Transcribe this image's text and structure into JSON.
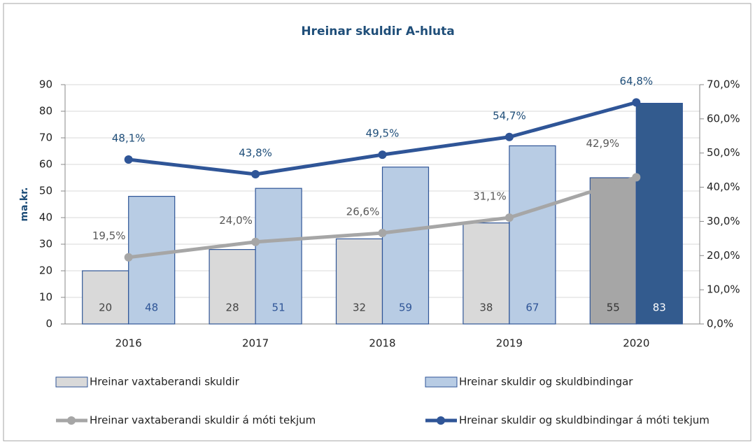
{
  "chart_data": {
    "type": "bar",
    "title": "Hreinar skuldir A-hluta",
    "ylabel": "ma.kr.",
    "categories": [
      "2016",
      "2017",
      "2018",
      "2019",
      "2020"
    ],
    "series": [
      {
        "name": "Hreinar vaxtaberandi skuldir",
        "type": "bar",
        "color": "#d9d9d9",
        "colors": [
          "#d9d9d9",
          "#d9d9d9",
          "#d9d9d9",
          "#d9d9d9",
          "#a6a6a6"
        ],
        "values": [
          20,
          28,
          32,
          38,
          55
        ]
      },
      {
        "name": "Hreinar skuldir og skuldbindingar",
        "type": "bar",
        "color": "#b8cce4",
        "colors": [
          "#b8cce4",
          "#b8cce4",
          "#b8cce4",
          "#b8cce4",
          "#335b8e"
        ],
        "values": [
          48,
          51,
          59,
          67,
          83
        ]
      },
      {
        "name": "Hreinar vaxtaberandi skuldir á móti tekjum",
        "type": "line",
        "axis": "y2",
        "color": "#a6a6a6",
        "values": [
          19.5,
          24.0,
          26.6,
          31.1,
          42.9
        ],
        "value_labels": [
          "19,5%",
          "24,0%",
          "26,6%",
          "31,1%",
          "42,9%"
        ]
      },
      {
        "name": "Hreinar skuldir og skuldbindingar á móti tekjum",
        "type": "line",
        "axis": "y2",
        "color": "#2f5597",
        "values": [
          48.1,
          43.8,
          49.5,
          54.7,
          64.8
        ],
        "value_labels": [
          "48,1%",
          "43,8%",
          "49,5%",
          "54,7%",
          "64,8%"
        ]
      }
    ],
    "ylim": [
      0,
      90
    ],
    "yticks": [
      0,
      10,
      20,
      30,
      40,
      50,
      60,
      70,
      80,
      90
    ],
    "y2lim": [
      0,
      70
    ],
    "y2ticks": [
      {
        "value": 0,
        "label": "0,0%"
      },
      {
        "value": 10,
        "label": "10,0%"
      },
      {
        "value": 20,
        "label": "20,0%"
      },
      {
        "value": 30,
        "label": "30,0%"
      },
      {
        "value": 40,
        "label": "40,0%"
      },
      {
        "value": 50,
        "label": "50,0%"
      },
      {
        "value": 60,
        "label": "60,0%"
      },
      {
        "value": 70,
        "label": "70,0%"
      }
    ],
    "grid": true,
    "legend": "bottom"
  }
}
